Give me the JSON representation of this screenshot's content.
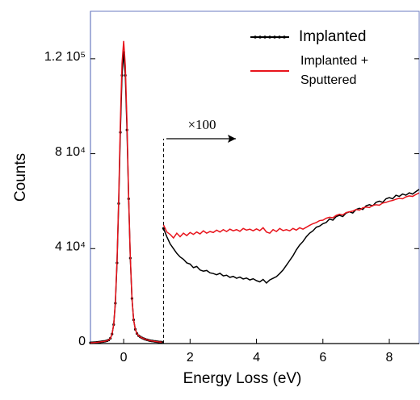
{
  "chart_data": {
    "type": "line",
    "x_label": "Energy Loss (eV)",
    "y_label": "Counts",
    "xlim": [
      -1,
      8.9
    ],
    "ylim": [
      0,
      140000
    ],
    "xticks": [
      0,
      2,
      4,
      6,
      8
    ],
    "yticks": [
      0,
      {
        "value": 40000,
        "label": "4 10⁴"
      },
      {
        "value": 80000,
        "label": "8 10⁴"
      },
      {
        "value": 120000,
        "label": "1.2 10⁵"
      }
    ],
    "vline": 1.2,
    "annotation": "×100",
    "x": [
      -1.0,
      -0.95,
      -0.9,
      -0.85,
      -0.8,
      -0.75,
      -0.7,
      -0.65,
      -0.6,
      -0.55,
      -0.5,
      -0.45,
      -0.4,
      -0.35,
      -0.3,
      -0.25,
      -0.2,
      -0.15,
      -0.1,
      -0.05,
      0,
      0.05,
      0.1,
      0.15,
      0.2,
      0.25,
      0.3,
      0.35,
      0.4,
      0.45,
      0.5,
      0.55,
      0.6,
      0.65,
      0.7,
      0.75,
      0.8,
      0.85,
      0.9,
      0.95,
      1.0,
      1.05,
      1.1,
      1.15,
      1.18,
      1.2,
      1.3,
      1.4,
      1.5,
      1.6,
      1.7,
      1.8,
      1.9,
      2.0,
      2.1,
      2.2,
      2.3,
      2.4,
      2.5,
      2.6,
      2.7,
      2.8,
      2.9,
      3.0,
      3.1,
      3.2,
      3.3,
      3.4,
      3.5,
      3.6,
      3.7,
      3.8,
      3.9,
      4.0,
      4.1,
      4.2,
      4.3,
      4.4,
      4.5,
      4.6,
      4.7,
      4.8,
      4.9,
      5.0,
      5.1,
      5.2,
      5.3,
      5.4,
      5.5,
      5.6,
      5.7,
      5.8,
      5.9,
      6.0,
      6.1,
      6.2,
      6.3,
      6.4,
      6.5,
      6.6,
      6.7,
      6.8,
      6.9,
      7.0,
      7.1,
      7.2,
      7.3,
      7.4,
      7.5,
      7.6,
      7.7,
      7.8,
      7.9,
      8.0,
      8.1,
      8.2,
      8.3,
      8.4,
      8.5,
      8.6,
      8.7,
      8.8,
      8.9
    ],
    "series": [
      {
        "name": "Implanted",
        "color": "#000000",
        "markers": true,
        "values": [
          300,
          350,
          400,
          450,
          500,
          600,
          700,
          800,
          900,
          1000,
          1200,
          1500,
          2200,
          4000,
          8000,
          17000,
          34000,
          59000,
          89000,
          113000,
          122700,
          113000,
          90000,
          61000,
          36000,
          19000,
          10000,
          6000,
          4200,
          3300,
          2800,
          2400,
          2100,
          1800,
          1600,
          1400,
          1200,
          1100,
          1000,
          900,
          800,
          700,
          650,
          600,
          null,
          48500,
          45000,
          42000,
          40000,
          38000,
          36500,
          35500,
          34000,
          33500,
          32000,
          32500,
          31000,
          30500,
          30800,
          29800,
          29500,
          29000,
          29600,
          28500,
          28800,
          27900,
          28300,
          27500,
          28000,
          27200,
          27600,
          26800,
          27300,
          26500,
          26000,
          27000,
          25500,
          26800,
          27500,
          28200,
          29500,
          31000,
          33000,
          35000,
          37000,
          39500,
          41500,
          43000,
          45000,
          46500,
          47500,
          49000,
          49500,
          50500,
          51000,
          52500,
          52000,
          53500,
          54000,
          53500,
          55000,
          55500,
          55000,
          56500,
          57000,
          56500,
          58000,
          58500,
          58000,
          59500,
          60000,
          59500,
          61000,
          61500,
          61000,
          62500,
          62000,
          63000,
          62500,
          63500,
          63000,
          64000,
          65000
        ]
      },
      {
        "name": "Implanted + Sputtered",
        "color": "#e8141c",
        "markers": false,
        "values": [
          300,
          350,
          400,
          450,
          500,
          600,
          700,
          800,
          900,
          1000,
          1200,
          1500,
          2200,
          4000,
          8000,
          17500,
          35000,
          61000,
          93000,
          118000,
          127500,
          117000,
          93000,
          62000,
          36500,
          19000,
          10000,
          6000,
          4200,
          3300,
          2800,
          2400,
          2100,
          1800,
          1600,
          1400,
          1200,
          1100,
          1000,
          900,
          800,
          700,
          650,
          600,
          null,
          50000,
          47000,
          46000,
          44500,
          46500,
          45000,
          46500,
          45500,
          46800,
          46000,
          47000,
          46200,
          47500,
          46500,
          47200,
          46800,
          47800,
          47000,
          48000,
          47200,
          48200,
          47500,
          48000,
          47300,
          48500,
          47800,
          48200,
          47500,
          48300,
          47600,
          48800,
          47000,
          46500,
          48000,
          47200,
          48500,
          47600,
          48000,
          47500,
          48500,
          47800,
          48800,
          48200,
          49000,
          49800,
          50500,
          51000,
          51800,
          52000,
          52800,
          53200,
          53000,
          54000,
          54500,
          54200,
          55200,
          55500,
          55800,
          56500,
          56200,
          57200,
          57500,
          57300,
          58200,
          58500,
          58300,
          59200,
          59500,
          60000,
          60300,
          60800,
          61200,
          61000,
          61800,
          62200,
          62000,
          62800,
          63500
        ]
      }
    ]
  }
}
